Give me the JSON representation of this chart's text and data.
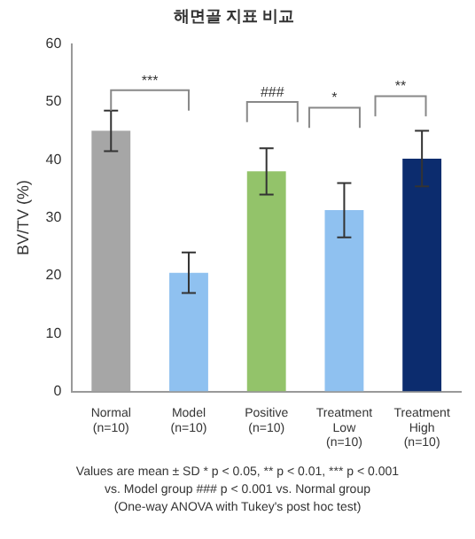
{
  "chart_data": {
    "type": "bar",
    "title": "해면골 지표 비교",
    "ylabel": "BV/TV (%)",
    "categories": [
      "Normal\n(n=10)",
      "Model\n(n=10)",
      "Positive\n(n=10)",
      "Treatment\nLow\n(n=10)",
      "Treatment\nHigh\n(n=10)"
    ],
    "values": [
      45,
      20.5,
      38,
      31.3,
      40.2
    ],
    "colors": [
      "#a6a6a6",
      "#8fc1f0",
      "#93c36a",
      "#8fc1f0",
      "#0c2c6e"
    ],
    "errors": [
      3.5,
      3.5,
      4,
      4.7,
      4.8
    ],
    "ylim": [
      0,
      60
    ],
    "yticks": [
      0,
      10,
      20,
      30,
      40,
      50,
      60
    ],
    "grid": false,
    "legend": false,
    "annotations": [
      "***",
      "###",
      "*",
      "**",
      "Values are mean ± SD     * p < 0.05, ** p < 0.01, *** p < 0.001",
      "vs. Model group     ### p < 0.001 vs. Normal group",
      "(One-way ANOVA with Tukey's post hoc test)"
    ]
  }
}
